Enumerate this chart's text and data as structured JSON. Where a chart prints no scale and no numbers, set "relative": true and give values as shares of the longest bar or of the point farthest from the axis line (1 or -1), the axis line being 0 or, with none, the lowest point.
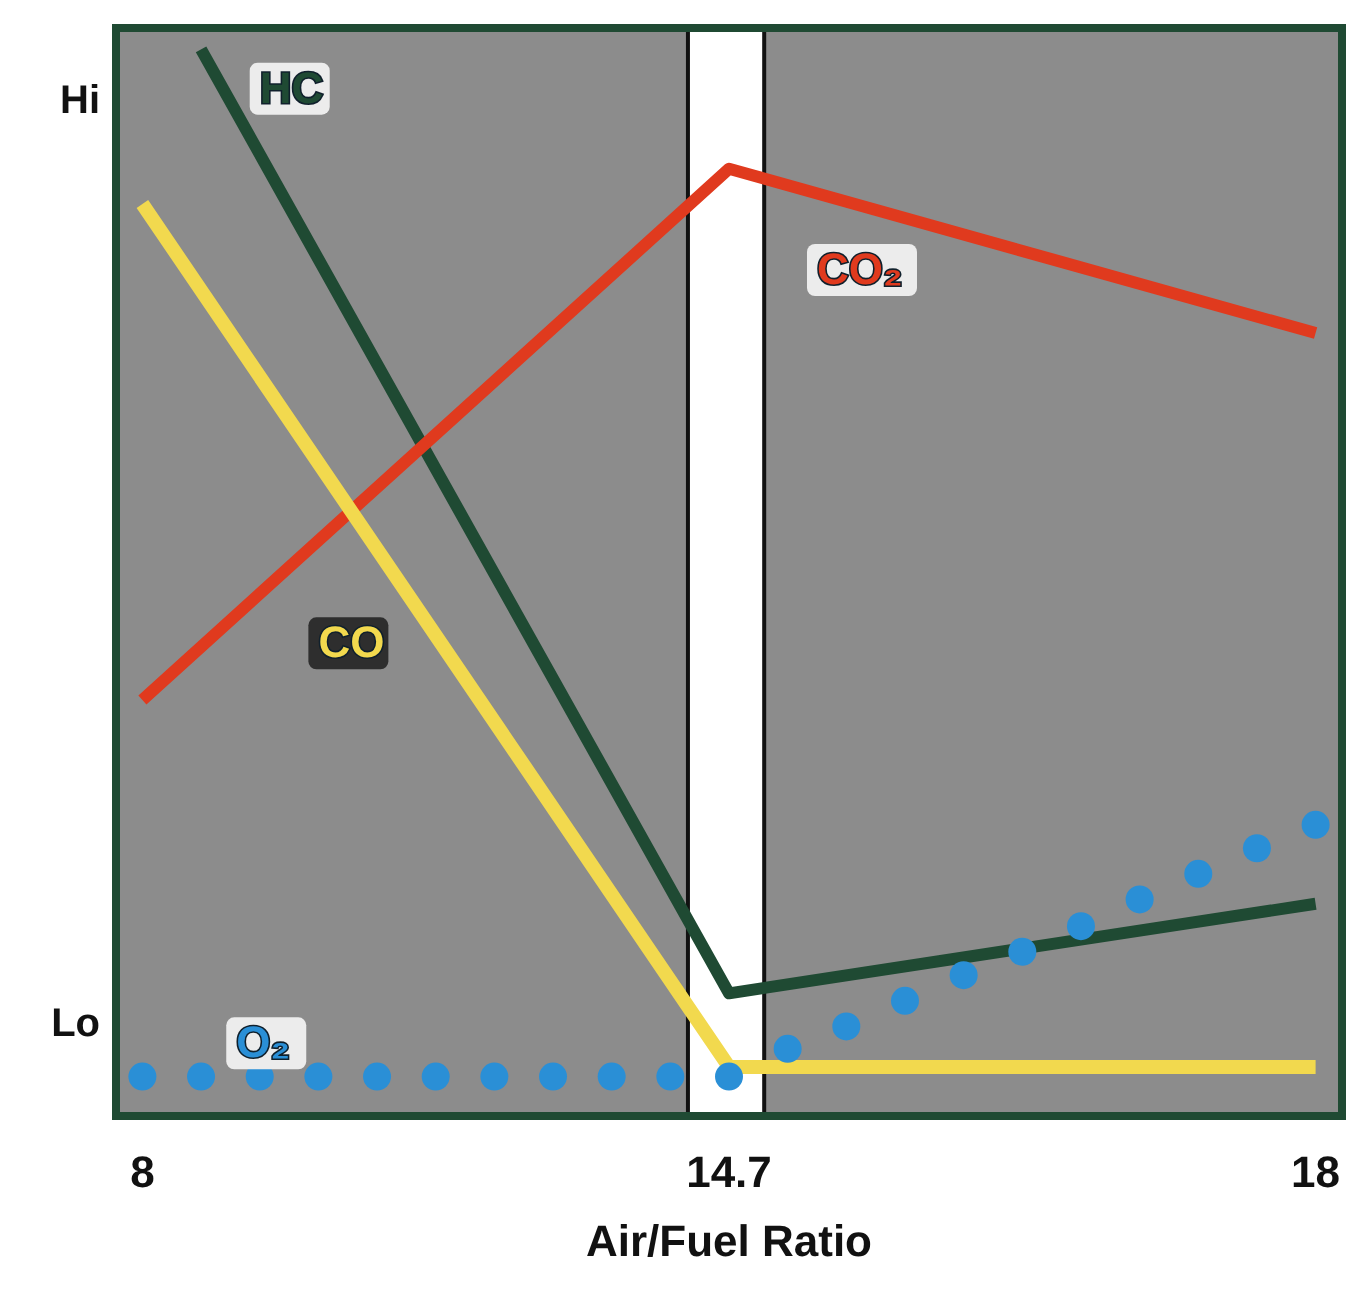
{
  "chart_data": {
    "type": "line",
    "relative": true,
    "xlabel": "Air/Fuel Ratio",
    "categories": [
      "8",
      null,
      null,
      null,
      null,
      null,
      null,
      null,
      null,
      null,
      "14.7",
      null,
      null,
      null,
      null,
      null,
      null,
      null,
      null,
      null,
      "18"
    ],
    "series": [
      {
        "name": "HC",
        "color": "#1f4a33",
        "values": [
          null,
          1.0,
          null,
          null,
          null,
          null,
          null,
          null,
          null,
          null,
          0.115,
          null,
          null,
          null,
          null,
          null,
          null,
          null,
          null,
          null,
          0.199
        ]
      },
      {
        "name": "CO₂",
        "color": "#e03a1e",
        "values": [
          0.39,
          null,
          null,
          null,
          null,
          null,
          null,
          null,
          null,
          null,
          0.888,
          null,
          null,
          null,
          null,
          null,
          null,
          null,
          null,
          null,
          0.734
        ]
      },
      {
        "name": "CO",
        "color": "#f2d94e",
        "values": [
          0.855,
          null,
          null,
          null,
          null,
          null,
          null,
          null,
          null,
          null,
          0.046,
          null,
          null,
          null,
          null,
          null,
          null,
          null,
          null,
          null,
          0.046
        ]
      },
      {
        "name": "O₂",
        "type": "scatter",
        "marker": "circle",
        "color": "#2a8fd6",
        "values": [
          0.037,
          0.037,
          0.037,
          0.037,
          0.037,
          0.037,
          0.037,
          0.037,
          0.037,
          0.037,
          0.037,
          0.063,
          0.084,
          0.108,
          0.132,
          0.154,
          0.178,
          0.203,
          0.227,
          0.251,
          0.273
        ]
      }
    ],
    "bands": [
      {
        "axis": "x",
        "from": "14.7",
        "to": "14.7",
        "color": "#ffffff"
      }
    ],
    "annotations": [
      "Hi",
      "Lo"
    ],
    "marker": "none"
  }
}
